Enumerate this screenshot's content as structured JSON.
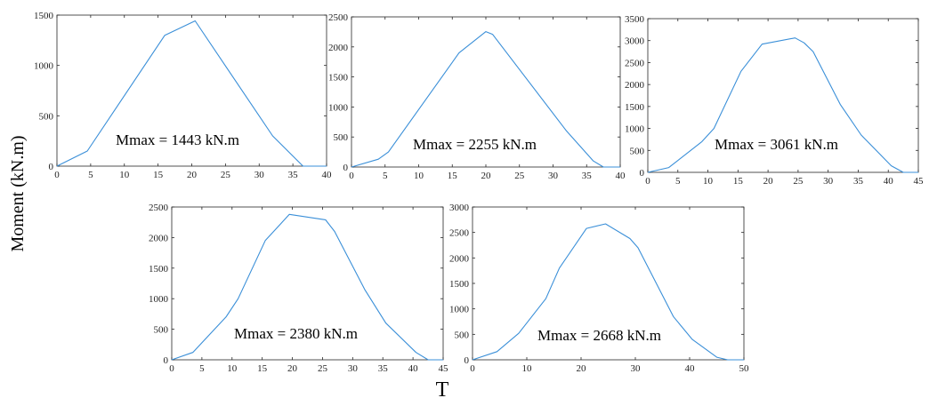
{
  "figure": {
    "ylabel": "Moment (kN.m)",
    "xlabel": "T"
  },
  "colors": {
    "line": "#3a8fd8",
    "frame": "#262626",
    "background": "#ffffff"
  },
  "chart_data": [
    {
      "type": "line",
      "annotation": "Mmax = 1443 kN.m",
      "xlim": [
        0,
        40
      ],
      "ylim": [
        0,
        1500
      ],
      "xticks": [
        0,
        5,
        10,
        15,
        20,
        25,
        30,
        35,
        40
      ],
      "yticks": [
        0,
        500,
        1000,
        1500
      ],
      "grid": false,
      "series": [
        {
          "x": [
            0,
            4.5,
            16,
            20.5,
            32,
            36.5,
            40
          ],
          "y": [
            0,
            150,
            1300,
            1443,
            300,
            0,
            0
          ]
        }
      ]
    },
    {
      "type": "line",
      "annotation": "Mmax = 2255 kN.m",
      "xlim": [
        0,
        40
      ],
      "ylim": [
        0,
        2500
      ],
      "xticks": [
        0,
        5,
        10,
        15,
        20,
        25,
        30,
        35,
        40
      ],
      "yticks": [
        0,
        500,
        1000,
        1500,
        2000,
        2500
      ],
      "grid": false,
      "series": [
        {
          "x": [
            0,
            4,
            5.5,
            16,
            20,
            21,
            32,
            36,
            37.5,
            40
          ],
          "y": [
            0,
            130,
            250,
            1900,
            2255,
            2210,
            600,
            100,
            0,
            0
          ]
        }
      ]
    },
    {
      "type": "line",
      "annotation": "Mmax = 3061 kN.m",
      "xlim": [
        0,
        45
      ],
      "ylim": [
        0,
        3500
      ],
      "xticks": [
        0,
        5,
        10,
        15,
        20,
        25,
        30,
        35,
        40,
        45
      ],
      "yticks": [
        0,
        500,
        1000,
        1500,
        2000,
        2500,
        3000,
        3500
      ],
      "grid": false,
      "series": [
        {
          "x": [
            0,
            3.5,
            9,
            11,
            15.5,
            19,
            24.5,
            26,
            27.5,
            32,
            35.5,
            40.5,
            42.5,
            45
          ],
          "y": [
            0,
            110,
            700,
            1000,
            2300,
            2920,
            3061,
            2950,
            2750,
            1550,
            850,
            150,
            0,
            0
          ]
        }
      ]
    },
    {
      "type": "line",
      "annotation": "Mmax = 2380 kN.m",
      "xlim": [
        0,
        45
      ],
      "ylim": [
        0,
        2500
      ],
      "xticks": [
        0,
        5,
        10,
        15,
        20,
        25,
        30,
        35,
        40,
        45
      ],
      "yticks": [
        0,
        500,
        1000,
        1500,
        2000,
        2500
      ],
      "grid": false,
      "series": [
        {
          "x": [
            0,
            3.5,
            9,
            11,
            15.5,
            19.5,
            25.5,
            27,
            32,
            35.5,
            40.5,
            42.5,
            45
          ],
          "y": [
            0,
            120,
            700,
            1000,
            1950,
            2380,
            2290,
            2100,
            1150,
            600,
            120,
            0,
            0
          ]
        }
      ]
    },
    {
      "type": "line",
      "annotation": "Mmax = 2668  kN.m",
      "xlim": [
        0,
        50
      ],
      "ylim": [
        0,
        3000
      ],
      "xticks": [
        0,
        10,
        20,
        30,
        40,
        50
      ],
      "yticks": [
        0,
        500,
        1000,
        1500,
        2000,
        2500,
        3000
      ],
      "grid": false,
      "series": [
        {
          "x": [
            0,
            4.5,
            8.5,
            13.5,
            16,
            21,
            24.5,
            29,
            30.5,
            37,
            40.5,
            45,
            47,
            50
          ],
          "y": [
            0,
            160,
            520,
            1200,
            1800,
            2580,
            2668,
            2380,
            2200,
            850,
            400,
            50,
            0,
            0
          ]
        }
      ]
    }
  ]
}
